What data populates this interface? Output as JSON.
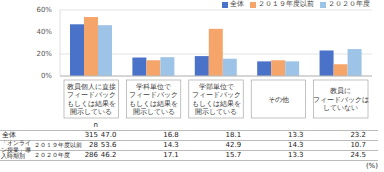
{
  "chart_data": {
    "type": "bar",
    "categories": [
      "教員個人に直接\nフィードバック\nもしくは結果を\n開示している",
      "学科単位で\nフィードバック\nもしくは結果を\n開示している",
      "学部単位で\nフィードバック\nもしくは結果を\n開示している",
      "その他",
      "教員に\nフィードバックは\nしていない"
    ],
    "series": [
      {
        "name": "全体",
        "color": "#4a72c9",
        "n": 315,
        "values": [
          47.0,
          16.8,
          18.1,
          13.3,
          23.2
        ],
        "value_labels": [
          "47.0",
          "16.8",
          "18.1",
          "13.3",
          "23.2"
        ]
      },
      {
        "name": "２０１９年度以前",
        "color": "#f6a56a",
        "n": 28,
        "values": [
          53.6,
          14.3,
          42.9,
          14.3,
          10.7
        ],
        "value_labels": [
          "53.6",
          "14.3",
          "42.9",
          "14.3",
          "10.7"
        ]
      },
      {
        "name": "２０２０年度",
        "color": "#9dc3e6",
        "n": 286,
        "values": [
          46.2,
          17.1,
          15.7,
          13.3,
          24.5
        ],
        "value_labels": [
          "46.2",
          "17.1",
          "15.7",
          "13.3",
          "24.5"
        ]
      }
    ],
    "ylim": [
      0,
      60
    ],
    "yticks": [
      {
        "value": 0,
        "label": "0%"
      },
      {
        "value": 20,
        "label": "20%"
      },
      {
        "value": 40,
        "label": "40%"
      },
      {
        "value": 60,
        "label": "60%"
      }
    ],
    "grid": true,
    "legend": "upper right",
    "table": {
      "n_header": "n",
      "group_label": "「オンライン授業」導入時期別",
      "group_series": [
        "２０１９年度以前",
        "２０２０年度"
      ],
      "note": "(%)"
    }
  }
}
